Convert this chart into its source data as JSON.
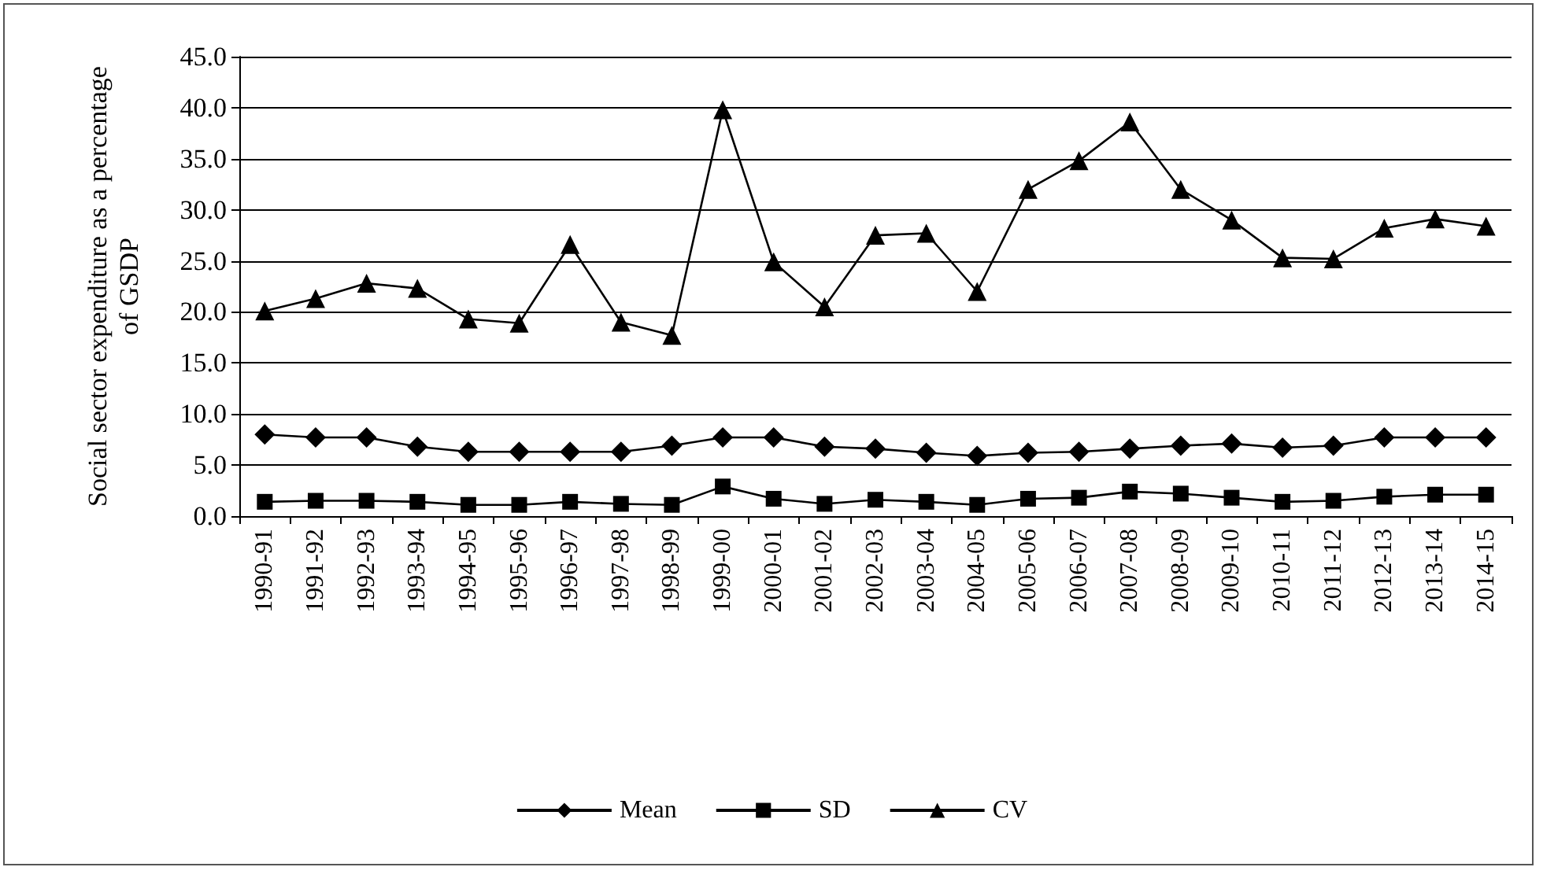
{
  "chart_data": {
    "type": "line",
    "ylabel": "Social sector expenditure as a percentage of GSDP",
    "categories": [
      "1990-91",
      "1991-92",
      "1992-93",
      "1993-94",
      "1994-95",
      "1995-96",
      "1996-97",
      "1997-98",
      "1998-99",
      "1999-00",
      "2000-01",
      "2001-02",
      "2002-03",
      "2003-04",
      "2004-05",
      "2005-06",
      "2006-07",
      "2007-08",
      "2008-09",
      "2009-10",
      "2010-11",
      "2011-12",
      "2012-13",
      "2013-14",
      "2014-15"
    ],
    "series": [
      {
        "name": "Mean",
        "color": "#000000",
        "marker": "diamond",
        "values": [
          8.0,
          7.7,
          7.7,
          6.8,
          6.3,
          6.3,
          6.3,
          6.3,
          6.9,
          7.7,
          7.7,
          6.8,
          6.6,
          6.2,
          5.9,
          6.2,
          6.3,
          6.6,
          6.9,
          7.1,
          6.7,
          6.9,
          7.7,
          7.7,
          7.7
        ]
      },
      {
        "name": "SD",
        "color": "#000000",
        "marker": "square",
        "values": [
          1.4,
          1.5,
          1.5,
          1.4,
          1.1,
          1.1,
          1.4,
          1.2,
          1.1,
          2.9,
          1.7,
          1.2,
          1.6,
          1.4,
          1.1,
          1.7,
          1.8,
          2.4,
          2.2,
          1.8,
          1.4,
          1.5,
          1.9,
          2.1,
          2.1
        ]
      },
      {
        "name": "CV",
        "color": "#000000",
        "marker": "triangle",
        "values": [
          20.1,
          21.3,
          22.8,
          22.3,
          19.3,
          18.9,
          26.6,
          19.0,
          17.7,
          39.8,
          24.9,
          20.5,
          27.5,
          27.7,
          22.0,
          32.0,
          34.8,
          38.6,
          32.0,
          29.0,
          25.3,
          25.2,
          28.2,
          29.1,
          28.4
        ]
      }
    ],
    "ylim": [
      0,
      45
    ],
    "yticks": [
      {
        "value": 0,
        "label": "0.0"
      },
      {
        "value": 5,
        "label": "5.0"
      },
      {
        "value": 10,
        "label": "10.0"
      },
      {
        "value": 15,
        "label": "15.0"
      },
      {
        "value": 20,
        "label": "20.0"
      },
      {
        "value": 25,
        "label": "25.0"
      },
      {
        "value": 30,
        "label": "30.0"
      },
      {
        "value": 35,
        "label": "35.0"
      },
      {
        "value": 40,
        "label": "40.0"
      },
      {
        "value": 45,
        "label": "45.0"
      }
    ],
    "grid": "y",
    "legend": "bottom",
    "line_style": "solid"
  }
}
